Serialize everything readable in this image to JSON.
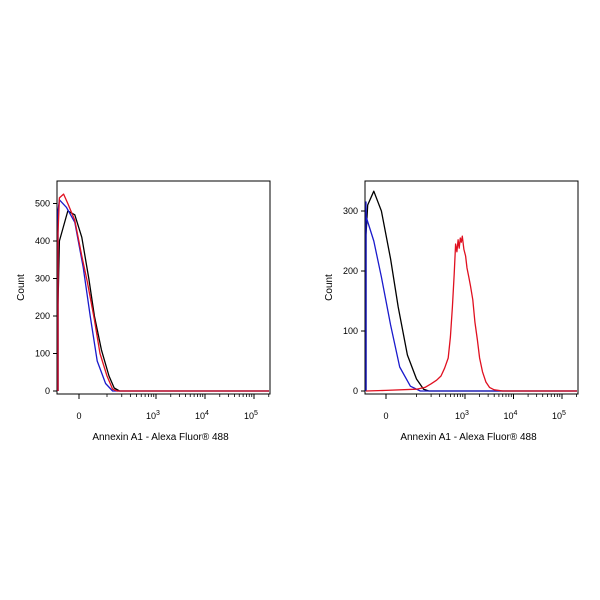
{
  "chart_data": [
    {
      "type": "line",
      "panel": "left",
      "xlabel": "Annexin A1 - Alexa Fluor® 488",
      "ylabel": "Count",
      "x_scale": "biexponential",
      "x_ticks": [
        {
          "value": 0,
          "label": "0"
        },
        {
          "value": 1000,
          "label": "10",
          "exp": "3"
        },
        {
          "value": 10000,
          "label": "10",
          "exp": "4"
        },
        {
          "value": 100000,
          "label": "10",
          "exp": "5"
        }
      ],
      "y_ticks": [
        0,
        100,
        200,
        300,
        400,
        500
      ],
      "ylim": [
        0,
        560
      ],
      "series": [
        {
          "color": "#000000",
          "points": [
            [
              -300,
              0
            ],
            [
              -200,
              8
            ],
            [
              -140,
              60
            ],
            [
              -100,
              230
            ],
            [
              -70,
              400
            ],
            [
              -40,
              480
            ],
            [
              -15,
              470
            ],
            [
              10,
              410
            ],
            [
              35,
              300
            ],
            [
              55,
              200
            ],
            [
              80,
              110
            ],
            [
              110,
              40
            ],
            [
              140,
              8
            ],
            [
              180,
              0
            ]
          ]
        },
        {
          "color": "#1a1acc",
          "points": [
            [
              -300,
              0
            ],
            [
              -220,
              10
            ],
            [
              -160,
              80
            ],
            [
              -120,
              300
            ],
            [
              -90,
              480
            ],
            [
              -70,
              510
            ],
            [
              -45,
              490
            ],
            [
              -15,
              450
            ],
            [
              15,
              330
            ],
            [
              40,
              200
            ],
            [
              65,
              80
            ],
            [
              95,
              20
            ],
            [
              130,
              0
            ]
          ]
        },
        {
          "color": "#e01020",
          "points": [
            [
              -300,
              0
            ],
            [
              -210,
              10
            ],
            [
              -160,
              60
            ],
            [
              -120,
              220
            ],
            [
              -95,
              420
            ],
            [
              -70,
              515
            ],
            [
              -55,
              525
            ],
            [
              -40,
              500
            ],
            [
              -15,
              455
            ],
            [
              10,
              360
            ],
            [
              30,
              290
            ],
            [
              55,
              190
            ],
            [
              75,
              100
            ],
            [
              100,
              40
            ],
            [
              130,
              5
            ],
            [
              160,
              0
            ]
          ]
        }
      ]
    },
    {
      "type": "line",
      "panel": "right",
      "xlabel": "Annexin A1 - Alexa Fluor® 488",
      "ylabel": "Count",
      "x_scale": "biexponential",
      "x_ticks": [
        {
          "value": 0,
          "label": "0"
        },
        {
          "value": 1000,
          "label": "10",
          "exp": "3"
        },
        {
          "value": 10000,
          "label": "10",
          "exp": "4"
        },
        {
          "value": 100000,
          "label": "10",
          "exp": "5"
        }
      ],
      "y_ticks": [
        0,
        100,
        200,
        300
      ],
      "ylim": [
        0,
        350
      ],
      "series": [
        {
          "color": "#000000",
          "points": [
            [
              -300,
              0
            ],
            [
              -200,
              8
            ],
            [
              -150,
              40
            ],
            [
              -110,
              160
            ],
            [
              -80,
              260
            ],
            [
              -60,
              310
            ],
            [
              -40,
              333
            ],
            [
              -15,
              300
            ],
            [
              15,
              220
            ],
            [
              40,
              140
            ],
            [
              70,
              60
            ],
            [
              100,
              20
            ],
            [
              140,
              3
            ],
            [
              180,
              0
            ]
          ]
        },
        {
          "color": "#1a1acc",
          "points": [
            [
              -300,
              0
            ],
            [
              -230,
              10
            ],
            [
              -180,
              60
            ],
            [
              -150,
              160
            ],
            [
              -125,
              290
            ],
            [
              -105,
              315
            ],
            [
              -85,
              310
            ],
            [
              -65,
              290
            ],
            [
              -40,
              250
            ],
            [
              -15,
              190
            ],
            [
              15,
              110
            ],
            [
              45,
              40
            ],
            [
              80,
              8
            ],
            [
              120,
              0
            ]
          ]
        },
        {
          "color": "#e01020",
          "points": [
            [
              -300,
              0
            ],
            [
              -100,
              0
            ],
            [
              0,
              1
            ],
            [
              100,
              3
            ],
            [
              150,
              6
            ],
            [
              200,
              12
            ],
            [
              260,
              18
            ],
            [
              320,
              25
            ],
            [
              380,
              38
            ],
            [
              450,
              55
            ],
            [
              500,
              90
            ],
            [
              550,
              140
            ],
            [
              600,
              195
            ],
            [
              640,
              245
            ],
            [
              680,
              232
            ],
            [
              720,
              252
            ],
            [
              760,
              238
            ],
            [
              800,
              255
            ],
            [
              840,
              248
            ],
            [
              880,
              258
            ],
            [
              950,
              236
            ],
            [
              1030,
              225
            ],
            [
              1100,
              205
            ],
            [
              1200,
              190
            ],
            [
              1300,
              175
            ],
            [
              1450,
              152
            ],
            [
              1600,
              115
            ],
            [
              1800,
              85
            ],
            [
              2000,
              55
            ],
            [
              2300,
              32
            ],
            [
              2700,
              15
            ],
            [
              3200,
              6
            ],
            [
              4000,
              2
            ],
            [
              6000,
              0
            ]
          ]
        }
      ]
    }
  ]
}
